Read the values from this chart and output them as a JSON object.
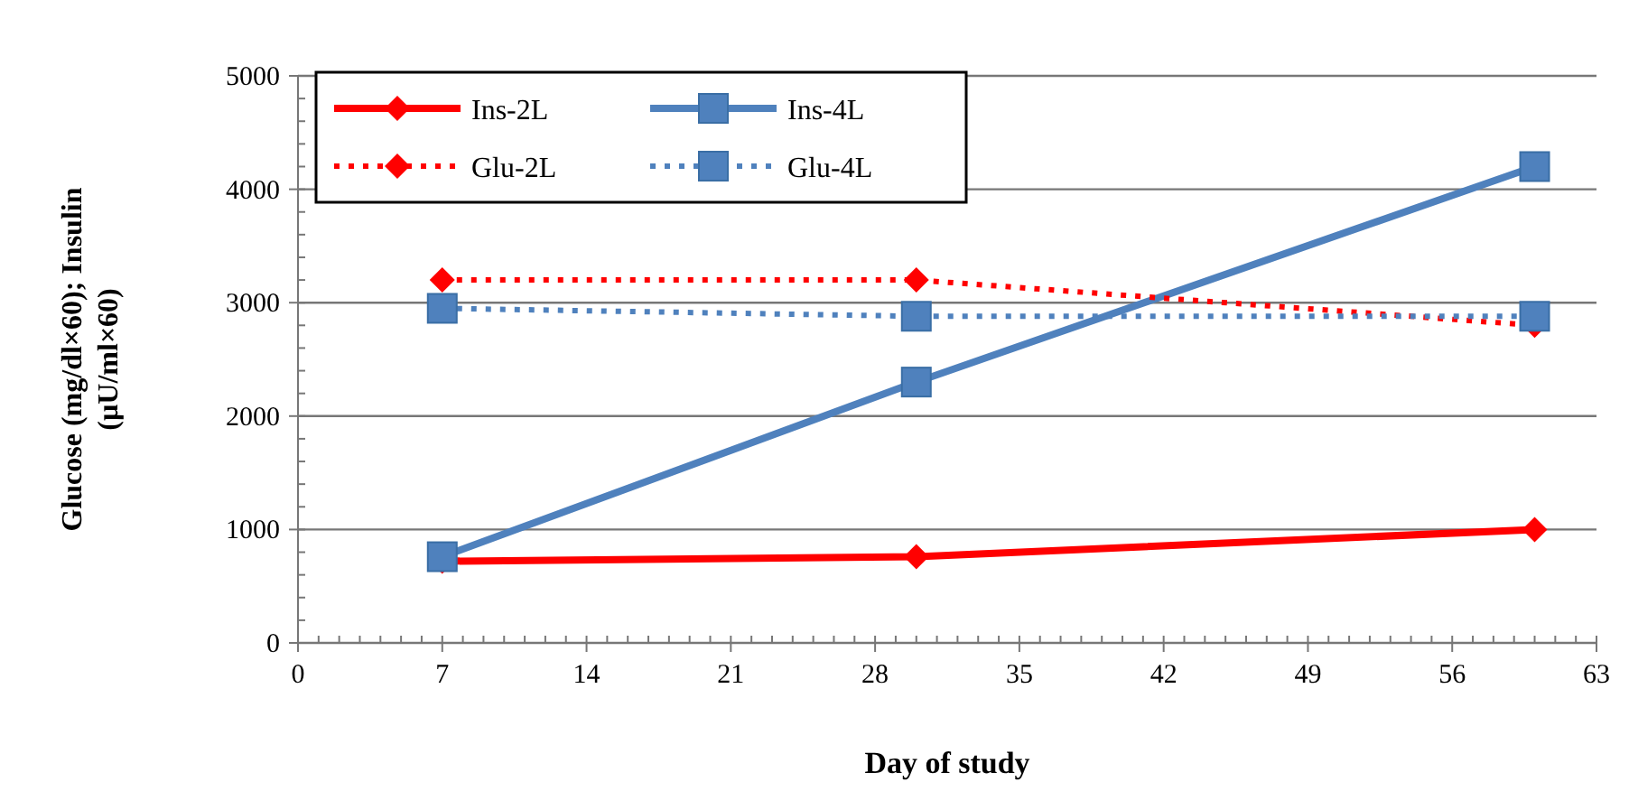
{
  "chart_data": {
    "type": "line",
    "xlabel": "Day of study",
    "ylabel": "Glucose (mg/dl×60); Insulin\n(µU/ml×60)",
    "x": [
      7,
      30,
      60
    ],
    "series": [
      {
        "name": "Ins-2L",
        "color": "#ff0000",
        "values": [
          720,
          760,
          1000
        ],
        "marker": "diamond",
        "line_style": "solid"
      },
      {
        "name": "Ins-4L",
        "color": "#4f81bd",
        "values": [
          760,
          2300,
          4200
        ],
        "marker": "square",
        "line_style": "solid"
      },
      {
        "name": "Glu-2L",
        "color": "#ff0000",
        "values": [
          3200,
          3200,
          2800
        ],
        "marker": "diamond",
        "line_style": "dotted"
      },
      {
        "name": "Glu-4L",
        "color": "#4f81bd",
        "values": [
          2950,
          2880,
          2880
        ],
        "marker": "square",
        "line_style": "dotted"
      }
    ],
    "xlim": [
      0,
      63
    ],
    "xticks": [
      0,
      7,
      14,
      21,
      28,
      35,
      42,
      49,
      56,
      63
    ],
    "ylim": [
      0,
      5000
    ],
    "yticks": [
      0,
      1000,
      2000,
      3000,
      4000,
      5000
    ],
    "grid": "y",
    "legend": "top left"
  }
}
